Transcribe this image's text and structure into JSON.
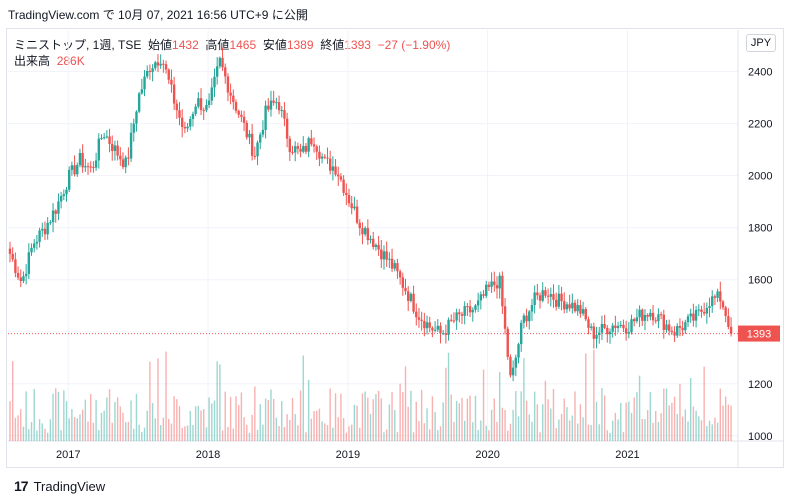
{
  "header": {
    "source_line": "TradingView.com で 10月 07, 2021 16:56 UTC+9 に公開"
  },
  "legend": {
    "symbol": "ミニストップ, 1週, TSE",
    "open_label": "始値",
    "open": "1432",
    "high_label": "高値",
    "high": "1465",
    "low_label": "安値",
    "low": "1389",
    "close_label": "終値",
    "close": "1393",
    "change": "−27 (−1.90%)",
    "volume_label": "出来高",
    "volume": "286K"
  },
  "currency_button": "JPY",
  "footer": {
    "brand": "TradingView",
    "logo_glyph": "17"
  },
  "colors": {
    "up": "#26a69a",
    "down": "#ef5350",
    "grid": "#f0f3fa",
    "axis_text": "#131722"
  },
  "chart_data": {
    "type": "candlestick",
    "interval": "weekly",
    "y_axis": {
      "ticks": [
        1000,
        1200,
        1400,
        1600,
        1800,
        2000,
        2200,
        2400
      ],
      "range": [
        980,
        2560
      ]
    },
    "x_axis": {
      "ticks": [
        "2017",
        "2018",
        "2019",
        "2020",
        "2021"
      ]
    },
    "last_price": 1393,
    "anchors_close": [
      [
        "2016-08",
        1700
      ],
      [
        "2016-09",
        1590
      ],
      [
        "2016-10",
        1740
      ],
      [
        "2016-11",
        1800
      ],
      [
        "2016-12",
        1880
      ],
      [
        "2017-01",
        1990
      ],
      [
        "2017-02",
        2060
      ],
      [
        "2017-03",
        2020
      ],
      [
        "2017-04",
        2170
      ],
      [
        "2017-05",
        2100
      ],
      [
        "2017-06",
        2040
      ],
      [
        "2017-07",
        2300
      ],
      [
        "2017-08",
        2420
      ],
      [
        "2017-09",
        2460
      ],
      [
        "2017-10",
        2300
      ],
      [
        "2017-11",
        2160
      ],
      [
        "2017-12",
        2290
      ],
      [
        "2018-01",
        2250
      ],
      [
        "2018-02",
        2440
      ],
      [
        "2018-03",
        2310
      ],
      [
        "2018-04",
        2200
      ],
      [
        "2018-05",
        2080
      ],
      [
        "2018-06",
        2250
      ],
      [
        "2018-07",
        2290
      ],
      [
        "2018-08",
        2120
      ],
      [
        "2018-09",
        2080
      ],
      [
        "2018-10",
        2150
      ],
      [
        "2018-11",
        2050
      ],
      [
        "2018-12",
        2030
      ],
      [
        "2019-01",
        1920
      ],
      [
        "2019-02",
        1820
      ],
      [
        "2019-03",
        1760
      ],
      [
        "2019-04",
        1700
      ],
      [
        "2019-05",
        1640
      ],
      [
        "2019-06",
        1560
      ],
      [
        "2019-07",
        1470
      ],
      [
        "2019-08",
        1420
      ],
      [
        "2019-09",
        1390
      ],
      [
        "2019-10",
        1440
      ],
      [
        "2019-11",
        1470
      ],
      [
        "2019-12",
        1490
      ],
      [
        "2020-01",
        1560
      ],
      [
        "2020-02",
        1600
      ],
      [
        "2020-03",
        1200
      ],
      [
        "2020-04",
        1440
      ],
      [
        "2020-05",
        1520
      ],
      [
        "2020-06",
        1560
      ],
      [
        "2020-07",
        1520
      ],
      [
        "2020-08",
        1510
      ],
      [
        "2020-09",
        1480
      ],
      [
        "2020-10",
        1390
      ],
      [
        "2020-11",
        1410
      ],
      [
        "2020-12",
        1430
      ],
      [
        "2021-01",
        1420
      ],
      [
        "2021-02",
        1460
      ],
      [
        "2021-03",
        1480
      ],
      [
        "2021-04",
        1440
      ],
      [
        "2021-05",
        1400
      ],
      [
        "2021-06",
        1430
      ],
      [
        "2021-07",
        1460
      ],
      [
        "2021-08",
        1520
      ],
      [
        "2021-09",
        1530
      ],
      [
        "2021-10",
        1393
      ]
    ]
  }
}
